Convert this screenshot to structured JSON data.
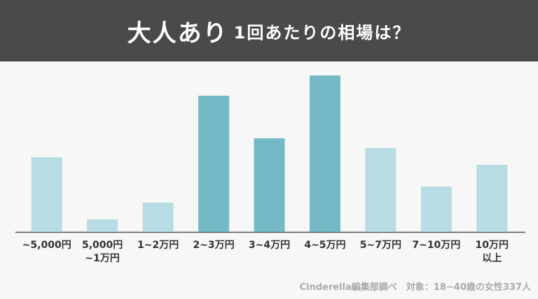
{
  "chart_data": {
    "type": "bar",
    "title": "大人あり",
    "subtitle": "1回あたりの相場は？",
    "categories": [
      "~5,000円",
      "5,000円\n~1万円",
      "1~2万円",
      "2~3万円",
      "3~4万円",
      "4~5万円",
      "5~7万円",
      "7~10万円",
      "10万円\n以上"
    ],
    "values": [
      107,
      18,
      42,
      195,
      134,
      224,
      120,
      65,
      96
    ],
    "colors": [
      "#b8dce3",
      "#b8dce3",
      "#b8dce3",
      "#74b9c6",
      "#74b9c6",
      "#74b9c6",
      "#b8dce3",
      "#b8dce3",
      "#b8dce3"
    ],
    "ylim": [
      0,
      240
    ],
    "source": "Cinderella編集部調べ　対象：18~40歳の女性337人"
  }
}
